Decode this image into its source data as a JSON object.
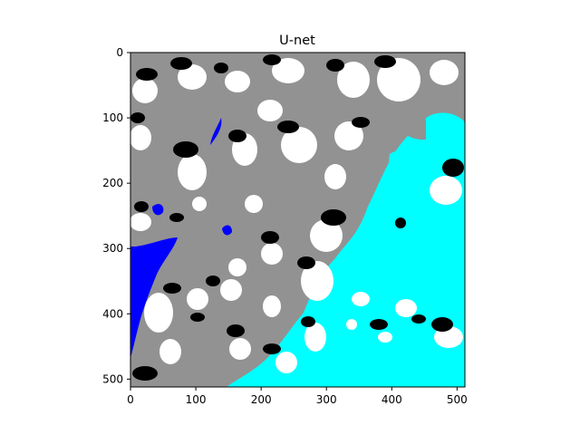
{
  "chart_data": {
    "type": "heatmap",
    "title": "U-net",
    "xlabel": "",
    "ylabel": "",
    "image_size": [
      512,
      512
    ],
    "xlim": [
      0,
      512
    ],
    "ylim": [
      512,
      0
    ],
    "x_ticks": [
      0,
      100,
      200,
      300,
      400,
      500
    ],
    "y_ticks": [
      0,
      100,
      200,
      300,
      400,
      500
    ],
    "grid": false,
    "legend": "none",
    "classes": [
      {
        "id": 0,
        "color": "#929292"
      },
      {
        "id": 1,
        "color": "#ffffff"
      },
      {
        "id": 2,
        "color": "#000000"
      },
      {
        "id": 3,
        "color": "#0000ff"
      },
      {
        "id": 4,
        "color": "#00ffff"
      }
    ]
  }
}
